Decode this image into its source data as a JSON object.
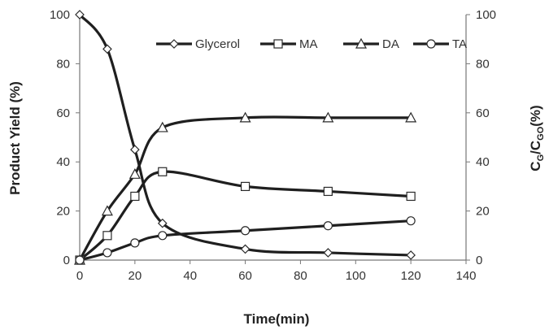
{
  "chart_data": {
    "type": "line",
    "x_axis": {
      "label": "Time(min)",
      "range": [
        0,
        140
      ],
      "ticks": [
        0,
        20,
        40,
        60,
        80,
        100,
        120,
        140
      ]
    },
    "y_axis_left": {
      "label": "Product Yield (%)",
      "range": [
        0,
        100
      ],
      "ticks": [
        0,
        20,
        40,
        60,
        80,
        100
      ]
    },
    "y_axis_right": {
      "label_parts": [
        "C",
        "G",
        "/C",
        "GO",
        "(%)"
      ],
      "range": [
        0,
        100
      ],
      "ticks": [
        0,
        20,
        40,
        60,
        80,
        100
      ]
    },
    "grid": false,
    "legend_position": "top-right",
    "series": [
      {
        "name": "Glycerol",
        "marker": "diamond",
        "axis": "right",
        "x": [
          0,
          10,
          20,
          30,
          60,
          90,
          120
        ],
        "y": [
          100,
          86,
          45,
          15,
          4.5,
          3,
          2
        ]
      },
      {
        "name": "MA",
        "marker": "square",
        "axis": "left",
        "x": [
          0,
          10,
          20,
          30,
          60,
          90,
          120
        ],
        "y": [
          0,
          10,
          26,
          36,
          30,
          28,
          26
        ]
      },
      {
        "name": "DA",
        "marker": "triangle",
        "axis": "left",
        "x": [
          0,
          10,
          20,
          30,
          60,
          90,
          120
        ],
        "y": [
          0,
          20,
          35,
          54,
          58,
          58,
          58
        ]
      },
      {
        "name": "TA",
        "marker": "circle",
        "axis": "left",
        "x": [
          0,
          10,
          20,
          30,
          60,
          90,
          120
        ],
        "y": [
          0,
          3,
          7,
          10,
          12,
          14,
          16
        ]
      }
    ]
  }
}
